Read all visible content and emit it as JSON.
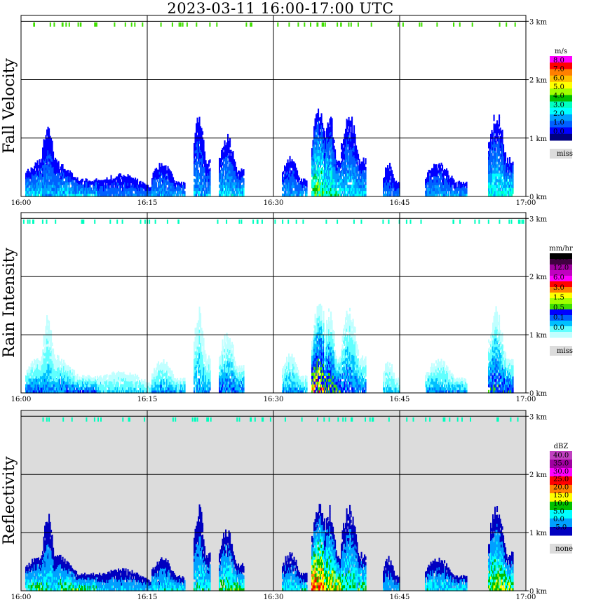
{
  "title": "2023-03-11   16:00-17:00 UTC",
  "chart_data": {
    "type": "heatmap",
    "title": "2023-03-11   16:00-17:00 UTC",
    "x_ticks": [
      "16:00",
      "16:15",
      "16:30",
      "16:45",
      "17:00"
    ],
    "y_ticks": [
      "0 km",
      "1 km",
      "2 km",
      "3 km"
    ],
    "ylim_km": [
      0,
      3.1
    ],
    "grid": true,
    "panels": [
      {
        "name": "Fall Velocity",
        "unit": "m/s",
        "legend_labels": [
          "8.0",
          "7.0",
          "6.0",
          "5.0",
          "4.0",
          "3.0",
          "2.0",
          "1.0",
          "0.0"
        ],
        "legend_colors": [
          "#ff00ff",
          "#ff0000",
          "#ff7f00",
          "#ffbf00",
          "#ffff00",
          "#a0ff00",
          "#00c000",
          "#00ffc0",
          "#00ffff",
          "#00a0ff",
          "#0060ff",
          "#0000ff",
          "#000080"
        ],
        "missing_label": "miss",
        "background": "#ffffff"
      },
      {
        "name": "Rain Intensity",
        "unit": "mm/hr",
        "legend_labels": [
          "48.0",
          "12.0",
          "6.0",
          "3.0",
          "1.5",
          "0.5",
          "0.1",
          "0.0"
        ],
        "legend_colors": [
          "#000000",
          "#400040",
          "#a000a0",
          "#c000c0",
          "#ff00ff",
          "#ff0000",
          "#ff7f00",
          "#ffff00",
          "#a0ff00",
          "#40e000",
          "#0000ff",
          "#0060ff",
          "#00c0ff",
          "#60ffff",
          "#c0ffff"
        ],
        "missing_label": "miss",
        "background": "#ffffff"
      },
      {
        "name": "Reflectivity",
        "unit": "dBZ",
        "legend_labels": [
          "40.0",
          "35.0",
          "30.0",
          "25.0",
          "20.0",
          "15.0",
          "10.0",
          "5.0",
          "0.0",
          "-5.0"
        ],
        "legend_colors": [
          "#c040c0",
          "#a000a0",
          "#ff00ff",
          "#ff0000",
          "#ff7f00",
          "#ffff00",
          "#00c000",
          "#00ffff",
          "#00a0ff",
          "#0000c0"
        ],
        "missing_label": "none",
        "background": "#dcdcdc"
      }
    ],
    "echo_cells": [
      {
        "time_min": 0.5,
        "width_min": 9,
        "top_km": 0.7,
        "intensity": 0.5
      },
      {
        "time_min": 2.5,
        "width_min": 2,
        "top_km": 1.4,
        "intensity": 0.4
      },
      {
        "time_min": 9,
        "width_min": 9,
        "top_km": 0.4,
        "intensity": 0.3
      },
      {
        "time_min": 15.5,
        "width_min": 4,
        "top_km": 0.6,
        "intensity": 0.4
      },
      {
        "time_min": 20.5,
        "width_min": 2,
        "top_km": 1.5,
        "intensity": 0.4
      },
      {
        "time_min": 23.5,
        "width_min": 3,
        "top_km": 1.1,
        "intensity": 0.5
      },
      {
        "time_min": 31,
        "width_min": 3,
        "top_km": 0.7,
        "intensity": 0.4
      },
      {
        "time_min": 34.5,
        "width_min": 3,
        "top_km": 1.6,
        "intensity": 0.9
      },
      {
        "time_min": 36,
        "width_min": 2,
        "top_km": 1.5,
        "intensity": 0.7
      },
      {
        "time_min": 38,
        "width_min": 3,
        "top_km": 1.5,
        "intensity": 0.5
      },
      {
        "time_min": 43,
        "width_min": 2,
        "top_km": 0.6,
        "intensity": 0.3
      },
      {
        "time_min": 48,
        "width_min": 5,
        "top_km": 0.6,
        "intensity": 0.4
      },
      {
        "time_min": 55.5,
        "width_min": 3,
        "top_km": 1.5,
        "intensity": 0.6
      }
    ]
  }
}
